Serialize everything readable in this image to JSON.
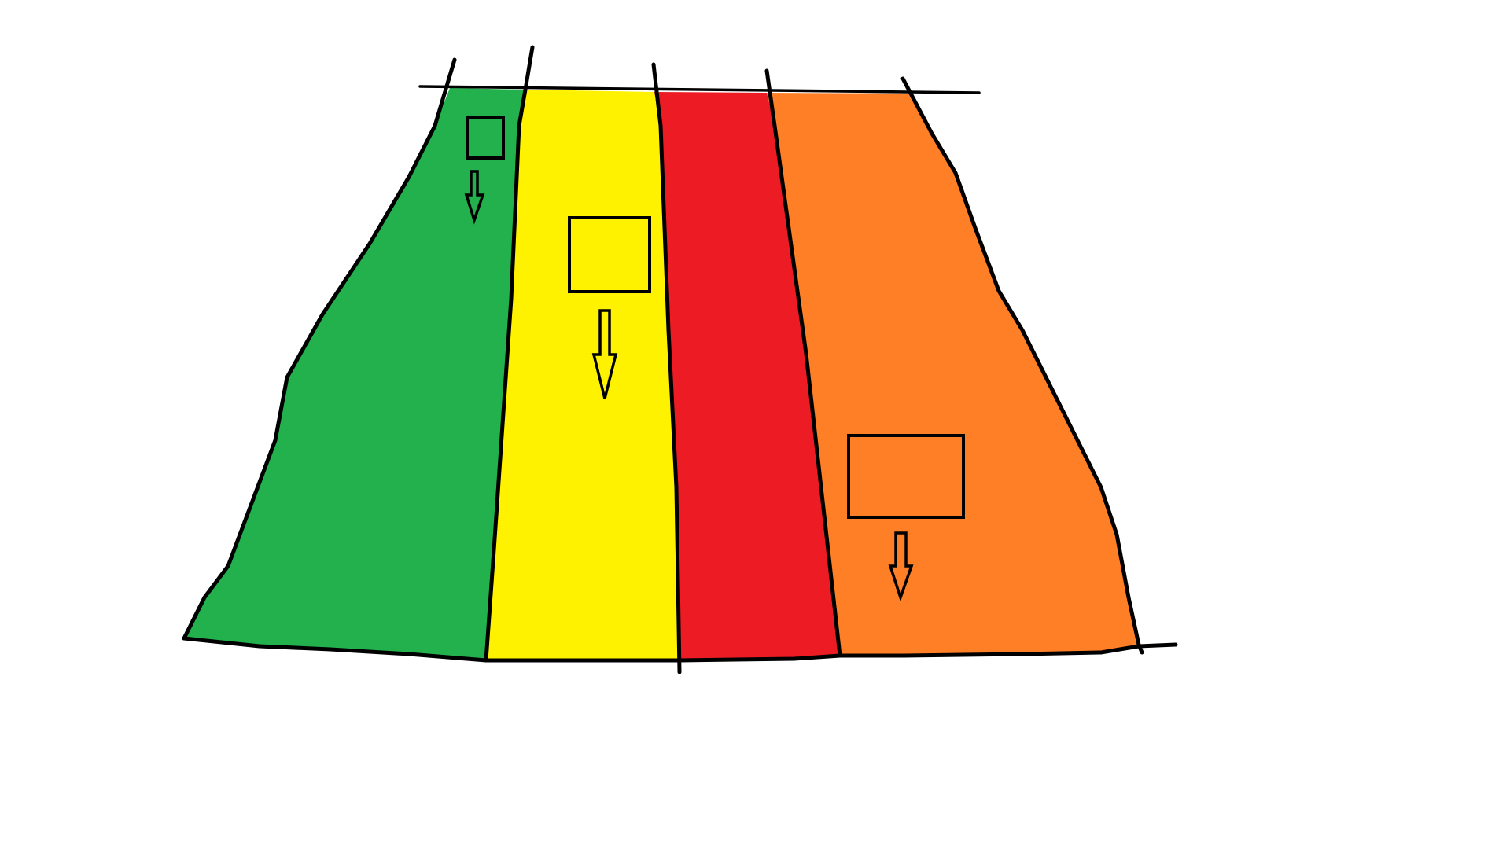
{
  "colors": {
    "background": "#ffffff",
    "green": "#22b14c",
    "yellow": "#fff200",
    "red": "#ed1c24",
    "orange": "#ff7f27",
    "line": "#000000"
  },
  "lanes": [
    {
      "id": "green",
      "color": "#22b14c",
      "has_box": true,
      "arrow_direction": "down"
    },
    {
      "id": "yellow",
      "color": "#fff200",
      "has_box": true,
      "arrow_direction": "down"
    },
    {
      "id": "red",
      "color": "#ed1c24",
      "has_box": false
    },
    {
      "id": "orange",
      "color": "#ff7f27",
      "has_box": true,
      "arrow_direction": "down"
    }
  ]
}
